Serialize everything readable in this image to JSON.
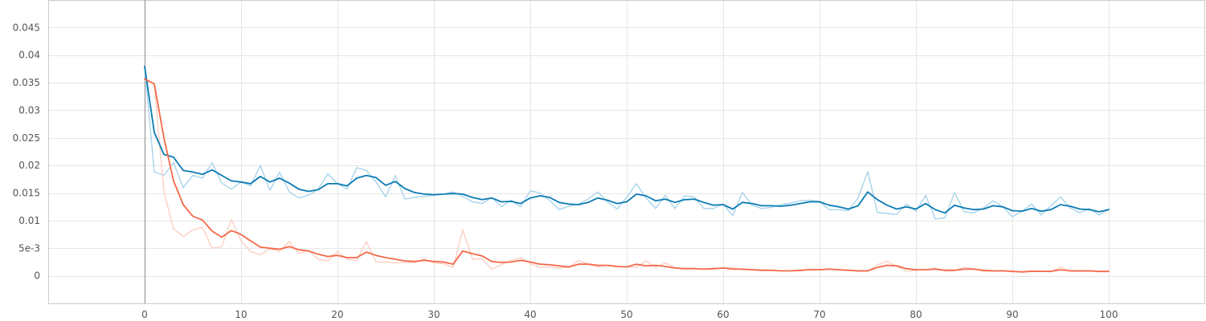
{
  "chart_data": {
    "type": "line",
    "title": "",
    "xlabel": "",
    "ylabel": "",
    "xlim": [
      -10,
      110
    ],
    "ylim": [
      -0.005,
      0.05
    ],
    "grid": true,
    "x_ticks": [
      0,
      10,
      20,
      30,
      40,
      50,
      60,
      70,
      80,
      90,
      100
    ],
    "x_tick_labels": [
      "0",
      "10",
      "20",
      "30",
      "40",
      "50",
      "60",
      "70",
      "80",
      "90",
      "100"
    ],
    "y_ticks": [
      0,
      0.005,
      0.01,
      0.015,
      0.02,
      0.025,
      0.03,
      0.035,
      0.04,
      0.045
    ],
    "y_tick_labels": [
      "0",
      "5e-3",
      "0.01",
      "0.015",
      "0.02",
      "0.025",
      "0.03",
      "0.035",
      "0.04",
      "0.045"
    ],
    "colors": {
      "blue_smoothed": "#0c7bb3",
      "blue_raw": "#a9d4ea",
      "orange_smoothed": "#f4694a",
      "orange_raw": "#fbd0c4"
    },
    "series": [
      {
        "role": "blue-raw",
        "x": [
          0,
          1,
          2,
          3,
          4,
          5,
          6,
          7,
          8,
          9,
          10,
          11,
          12,
          13,
          14,
          15,
          16,
          17,
          18,
          19,
          20,
          21,
          22,
          23,
          24,
          25,
          26,
          27,
          28,
          29,
          30,
          31,
          32,
          33,
          34,
          35,
          36,
          37,
          38,
          39,
          40,
          41,
          42,
          43,
          44,
          45,
          46,
          47,
          48,
          49,
          50,
          51,
          52,
          53,
          54,
          55,
          56,
          57,
          58,
          59,
          60,
          61,
          62,
          63,
          64,
          65,
          66,
          67,
          68,
          69,
          70,
          71,
          72,
          73,
          74,
          75,
          76,
          77,
          78,
          79,
          80,
          81,
          82,
          83,
          84,
          85,
          86,
          87,
          88,
          89,
          90,
          91,
          92,
          93,
          94,
          95,
          96,
          97,
          98,
          99,
          100
        ],
        "y": [
          0.038,
          0.0188,
          0.0182,
          0.0205,
          0.016,
          0.0182,
          0.0177,
          0.0205,
          0.0168,
          0.0157,
          0.017,
          0.0163,
          0.02,
          0.0155,
          0.0188,
          0.0152,
          0.0141,
          0.0146,
          0.0157,
          0.0185,
          0.0167,
          0.0157,
          0.0196,
          0.0191,
          0.017,
          0.0143,
          0.0182,
          0.0139,
          0.0142,
          0.0144,
          0.0146,
          0.0148,
          0.0152,
          0.0144,
          0.0134,
          0.0131,
          0.0142,
          0.0125,
          0.0137,
          0.0125,
          0.0154,
          0.015,
          0.0137,
          0.012,
          0.0126,
          0.013,
          0.0139,
          0.0152,
          0.0134,
          0.0121,
          0.0142,
          0.0167,
          0.0141,
          0.0122,
          0.0146,
          0.0122,
          0.0145,
          0.0143,
          0.0122,
          0.0122,
          0.013,
          0.0109,
          0.0151,
          0.0128,
          0.0122,
          0.0124,
          0.0129,
          0.0132,
          0.0136,
          0.0137,
          0.0135,
          0.012,
          0.012,
          0.0118,
          0.0141,
          0.0189,
          0.0115,
          0.0113,
          0.0111,
          0.013,
          0.0117,
          0.0146,
          0.0103,
          0.0105,
          0.0151,
          0.0116,
          0.0114,
          0.0123,
          0.0136,
          0.0125,
          0.0107,
          0.0117,
          0.013,
          0.011,
          0.0127,
          0.0143,
          0.0123,
          0.0114,
          0.0122,
          0.011,
          0.0121
        ]
      },
      {
        "role": "orange-raw",
        "x": [
          0,
          1,
          2,
          3,
          4,
          5,
          6,
          7,
          8,
          9,
          10,
          11,
          12,
          13,
          14,
          15,
          16,
          17,
          18,
          19,
          20,
          21,
          22,
          23,
          24,
          25,
          26,
          27,
          28,
          29,
          30,
          31,
          32,
          33,
          34,
          35,
          36,
          37,
          38,
          39,
          40,
          41,
          42,
          43,
          44,
          45,
          46,
          47,
          48,
          49,
          50,
          51,
          52,
          53,
          54,
          55,
          56,
          57,
          58,
          59,
          60,
          61,
          62,
          63,
          64,
          65,
          66,
          67,
          68,
          69,
          70,
          71,
          72,
          73,
          74,
          75,
          76,
          77,
          78,
          79,
          80,
          81,
          82,
          83,
          84,
          85,
          86,
          87,
          88,
          89,
          90,
          91,
          92,
          93,
          94,
          95,
          96,
          97,
          98,
          99,
          100
        ],
        "y": [
          0.0355,
          0.0348,
          0.0153,
          0.0085,
          0.0071,
          0.0083,
          0.0088,
          0.005,
          0.0053,
          0.0102,
          0.0063,
          0.0044,
          0.0038,
          0.0049,
          0.0044,
          0.0062,
          0.004,
          0.0046,
          0.003,
          0.0027,
          0.0044,
          0.003,
          0.0028,
          0.0062,
          0.0025,
          0.0025,
          0.0023,
          0.0024,
          0.0024,
          0.0031,
          0.0023,
          0.0022,
          0.0015,
          0.0083,
          0.003,
          0.0031,
          0.0012,
          0.002,
          0.0028,
          0.0033,
          0.0022,
          0.0015,
          0.0016,
          0.0014,
          0.0015,
          0.0028,
          0.0021,
          0.0016,
          0.0019,
          0.0016,
          0.0016,
          0.0015,
          0.0027,
          0.0015,
          0.0023,
          0.0015,
          0.0012,
          0.0013,
          0.0012,
          0.0012,
          0.0014,
          0.0015,
          0.0011,
          0.0011,
          0.0011,
          0.001,
          0.0009,
          0.0009,
          0.0009,
          0.0012,
          0.0011,
          0.0013,
          0.001,
          0.001,
          0.0008,
          0.0008,
          0.002,
          0.0026,
          0.0017,
          0.0008,
          0.001,
          0.0011,
          0.0014,
          0.0009,
          0.0009,
          0.0015,
          0.0013,
          0.0008,
          0.0008,
          0.001,
          0.0007,
          0.0007,
          0.0009,
          0.0008,
          0.0007,
          0.0016,
          0.0008,
          0.0008,
          0.0008,
          0.0007,
          0.0007
        ]
      },
      {
        "role": "blue-smoothed",
        "x": [
          0,
          1,
          2,
          3,
          4,
          5,
          6,
          7,
          8,
          9,
          10,
          11,
          12,
          13,
          14,
          15,
          16,
          17,
          18,
          19,
          20,
          21,
          22,
          23,
          24,
          25,
          26,
          27,
          28,
          29,
          30,
          31,
          32,
          33,
          34,
          35,
          36,
          37,
          38,
          39,
          40,
          41,
          42,
          43,
          44,
          45,
          46,
          47,
          48,
          49,
          50,
          51,
          52,
          53,
          54,
          55,
          56,
          57,
          58,
          59,
          60,
          61,
          62,
          63,
          64,
          65,
          66,
          67,
          68,
          69,
          70,
          71,
          72,
          73,
          74,
          75,
          76,
          77,
          78,
          79,
          80,
          81,
          82,
          83,
          84,
          85,
          86,
          87,
          88,
          89,
          90,
          91,
          92,
          93,
          94,
          95,
          96,
          97,
          98,
          99,
          100
        ],
        "y": [
          0.038,
          0.026,
          0.022,
          0.0215,
          0.0191,
          0.0188,
          0.0184,
          0.0192,
          0.0182,
          0.0172,
          0.017,
          0.0167,
          0.018,
          0.017,
          0.0177,
          0.0168,
          0.0157,
          0.0153,
          0.0156,
          0.0167,
          0.0167,
          0.0163,
          0.0177,
          0.0182,
          0.0178,
          0.0164,
          0.0171,
          0.0158,
          0.0151,
          0.0148,
          0.0147,
          0.0148,
          0.0149,
          0.0148,
          0.0142,
          0.0138,
          0.0141,
          0.0134,
          0.0135,
          0.0131,
          0.0141,
          0.0145,
          0.0142,
          0.0133,
          0.013,
          0.0129,
          0.0133,
          0.0141,
          0.0137,
          0.0131,
          0.0134,
          0.0148,
          0.0145,
          0.0136,
          0.0139,
          0.0133,
          0.0138,
          0.0139,
          0.0133,
          0.0128,
          0.0129,
          0.0121,
          0.0133,
          0.0131,
          0.0127,
          0.0127,
          0.0126,
          0.0128,
          0.0131,
          0.0134,
          0.0134,
          0.0128,
          0.0125,
          0.0121,
          0.0127,
          0.0152,
          0.0138,
          0.0128,
          0.0121,
          0.0125,
          0.0121,
          0.0131,
          0.012,
          0.0114,
          0.0128,
          0.0123,
          0.012,
          0.0121,
          0.0127,
          0.0125,
          0.0118,
          0.0117,
          0.0122,
          0.0117,
          0.012,
          0.0129,
          0.0126,
          0.0121,
          0.012,
          0.0116,
          0.012
        ]
      },
      {
        "role": "orange-smoothed",
        "x": [
          0,
          1,
          2,
          3,
          4,
          5,
          6,
          7,
          8,
          9,
          10,
          11,
          12,
          13,
          14,
          15,
          16,
          17,
          18,
          19,
          20,
          21,
          22,
          23,
          24,
          25,
          26,
          27,
          28,
          29,
          30,
          31,
          32,
          33,
          34,
          35,
          36,
          37,
          38,
          39,
          40,
          41,
          42,
          43,
          44,
          45,
          46,
          47,
          48,
          49,
          50,
          51,
          52,
          53,
          54,
          55,
          56,
          57,
          58,
          59,
          60,
          61,
          62,
          63,
          64,
          65,
          66,
          67,
          68,
          69,
          70,
          71,
          72,
          73,
          74,
          75,
          76,
          77,
          78,
          79,
          80,
          81,
          82,
          83,
          84,
          85,
          86,
          87,
          88,
          89,
          90,
          91,
          92,
          93,
          94,
          95,
          96,
          97,
          98,
          99,
          100
        ],
        "y": [
          0.0357,
          0.0348,
          0.025,
          0.0172,
          0.0129,
          0.0108,
          0.0101,
          0.0081,
          0.007,
          0.0082,
          0.0075,
          0.0063,
          0.0052,
          0.005,
          0.0048,
          0.0053,
          0.0047,
          0.0045,
          0.0039,
          0.0035,
          0.0037,
          0.0033,
          0.0033,
          0.0043,
          0.0037,
          0.0033,
          0.003,
          0.0027,
          0.0026,
          0.0028,
          0.0026,
          0.0025,
          0.0021,
          0.0045,
          0.004,
          0.0036,
          0.0026,
          0.0024,
          0.0025,
          0.0028,
          0.0025,
          0.0021,
          0.002,
          0.0018,
          0.0016,
          0.0021,
          0.0021,
          0.0019,
          0.0019,
          0.0017,
          0.0016,
          0.0021,
          0.0018,
          0.0019,
          0.0017,
          0.0014,
          0.0013,
          0.0013,
          0.0012,
          0.0013,
          0.0014,
          0.0012,
          0.0012,
          0.0011,
          0.001,
          0.001,
          0.0009,
          0.0009,
          0.001,
          0.0011,
          0.0011,
          0.0012,
          0.0011,
          0.001,
          0.0009,
          0.0009,
          0.0015,
          0.0019,
          0.0018,
          0.0013,
          0.0011,
          0.0011,
          0.0012,
          0.001,
          0.001,
          0.0012,
          0.0012,
          0.001,
          0.0009,
          0.0009,
          0.0008,
          0.0007,
          0.0008,
          0.0008,
          0.0008,
          0.0011,
          0.0009,
          0.0009,
          0.0009,
          0.0008,
          0.0008
        ]
      }
    ]
  }
}
